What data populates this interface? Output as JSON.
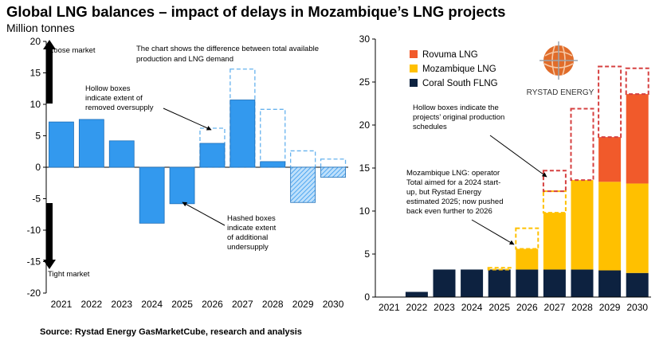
{
  "header": {
    "title": "Global LNG balances – impact of delays in Mozambique’s LNG projects",
    "subtitle": "Million tonnes"
  },
  "footer": {
    "source": "Source: Rystad Energy GasMarketCube, research and analysis"
  },
  "logo": {
    "text": "RYSTAD ENERGY"
  },
  "colors": {
    "blue": "#3399ee",
    "dashed_blue": "#66b2ee",
    "rovuma": "#f15a2b",
    "mozambique": "#ffc000",
    "coral": "#0d2240",
    "dashed_red": "#d64040",
    "dashed_yellow": "#ffc000"
  },
  "chart_data": [
    {
      "type": "bar",
      "categories": [
        "2021",
        "2022",
        "2023",
        "2024",
        "2025",
        "2026",
        "2027",
        "2028",
        "2029",
        "2030"
      ],
      "values": [
        7.2,
        7.6,
        4.2,
        -8.9,
        -5.8,
        3.8,
        10.7,
        0.9,
        -5.6,
        -1.6
      ],
      "hatched": [
        false,
        false,
        false,
        false,
        false,
        false,
        false,
        false,
        true,
        true
      ],
      "hollow_extent": [
        null,
        null,
        null,
        null,
        null,
        6.2,
        15.6,
        9.2,
        2.6,
        1.3
      ],
      "ylim": [
        -20,
        20
      ],
      "yticks": [
        20,
        15,
        10,
        5,
        0,
        -5,
        -10,
        -15,
        -20
      ],
      "annotations": {
        "loose": "Loose market",
        "tight": "Tight market",
        "top_note": [
          "The chart shows the difference between total available",
          "production and LNG demand"
        ],
        "hollow_note": [
          "Hollow boxes",
          "indicate extent of",
          "removed oversupply"
        ],
        "hashed_note": [
          "Hashed boxes",
          "indicate extent",
          "of additional",
          "undersupply"
        ]
      }
    },
    {
      "type": "bar",
      "stacked": true,
      "categories": [
        "2021",
        "2022",
        "2023",
        "2024",
        "2025",
        "2026",
        "2027",
        "2028",
        "2029",
        "2030"
      ],
      "series": [
        {
          "name": "Coral South FLNG",
          "values": [
            0,
            0.6,
            3.2,
            3.2,
            3.2,
            3.2,
            3.2,
            3.2,
            3.1,
            2.8
          ]
        },
        {
          "name": "Mozambique LNG",
          "values": [
            0,
            0,
            0,
            0,
            0,
            2.4,
            6.6,
            10.4,
            10.3,
            10.4
          ]
        },
        {
          "name": "Rovuma LNG",
          "values": [
            0,
            0,
            0,
            0,
            0,
            0,
            0,
            0,
            5.2,
            10.4
          ]
        }
      ],
      "legend": [
        "Rovuma LNG",
        "Mozambique LNG",
        "Coral South FLNG"
      ],
      "original_schedule": [
        {
          "category": "2025",
          "bottom": 3.2,
          "top": 3.4,
          "color": "yellow"
        },
        {
          "category": "2026",
          "bottom": 5.6,
          "top": 8.0,
          "color": "yellow"
        },
        {
          "category": "2027",
          "bottom": 9.8,
          "top": 12.3,
          "color": "yellow"
        },
        {
          "category": "2027",
          "bottom": 12.3,
          "top": 14.7,
          "color": "red"
        },
        {
          "category": "2028",
          "bottom": 13.6,
          "top": 21.9,
          "color": "red"
        },
        {
          "category": "2029",
          "bottom": 18.6,
          "top": 26.8,
          "color": "red"
        },
        {
          "category": "2030",
          "bottom": 23.6,
          "top": 26.6,
          "color": "red"
        }
      ],
      "ylim": [
        0,
        30
      ],
      "yticks": [
        30,
        25,
        20,
        15,
        10,
        5,
        0
      ],
      "annotations": {
        "hollow_note": [
          "Hollow boxes indicate the",
          "projects’ original production",
          "schedules"
        ],
        "moz_note": [
          "Mozambique LNG: operator",
          "Total aimed for a 2024 start-",
          "up, but Rystad Energy",
          "estimated 2025; now pushed",
          "back even further to 2026"
        ]
      }
    }
  ]
}
